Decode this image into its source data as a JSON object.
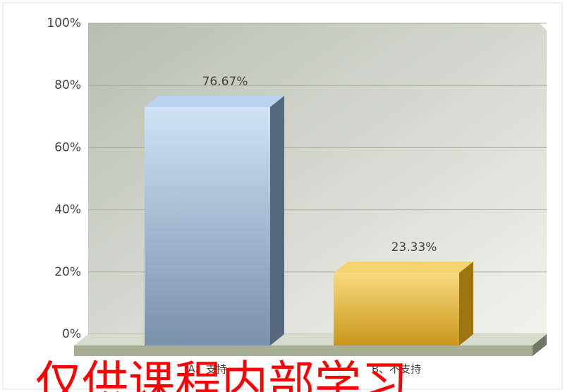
{
  "chart_data": {
    "type": "bar",
    "categories": [
      "A、支持",
      "B、不支持"
    ],
    "values": [
      76.67,
      23.33
    ],
    "value_labels": [
      "76.67%",
      "23.33%"
    ],
    "colors": [
      "#9db7d4",
      "#e8b830"
    ],
    "ylim": [
      0,
      100
    ],
    "yticks": [
      {
        "value": 0,
        "label": "0%"
      },
      {
        "value": 20,
        "label": "20%"
      },
      {
        "value": 40,
        "label": "40%"
      },
      {
        "value": 60,
        "label": "60%"
      },
      {
        "value": 80,
        "label": "80%"
      },
      {
        "value": 100,
        "label": "100%"
      }
    ],
    "grid": true
  },
  "watermark": "仅供课程内部学习"
}
